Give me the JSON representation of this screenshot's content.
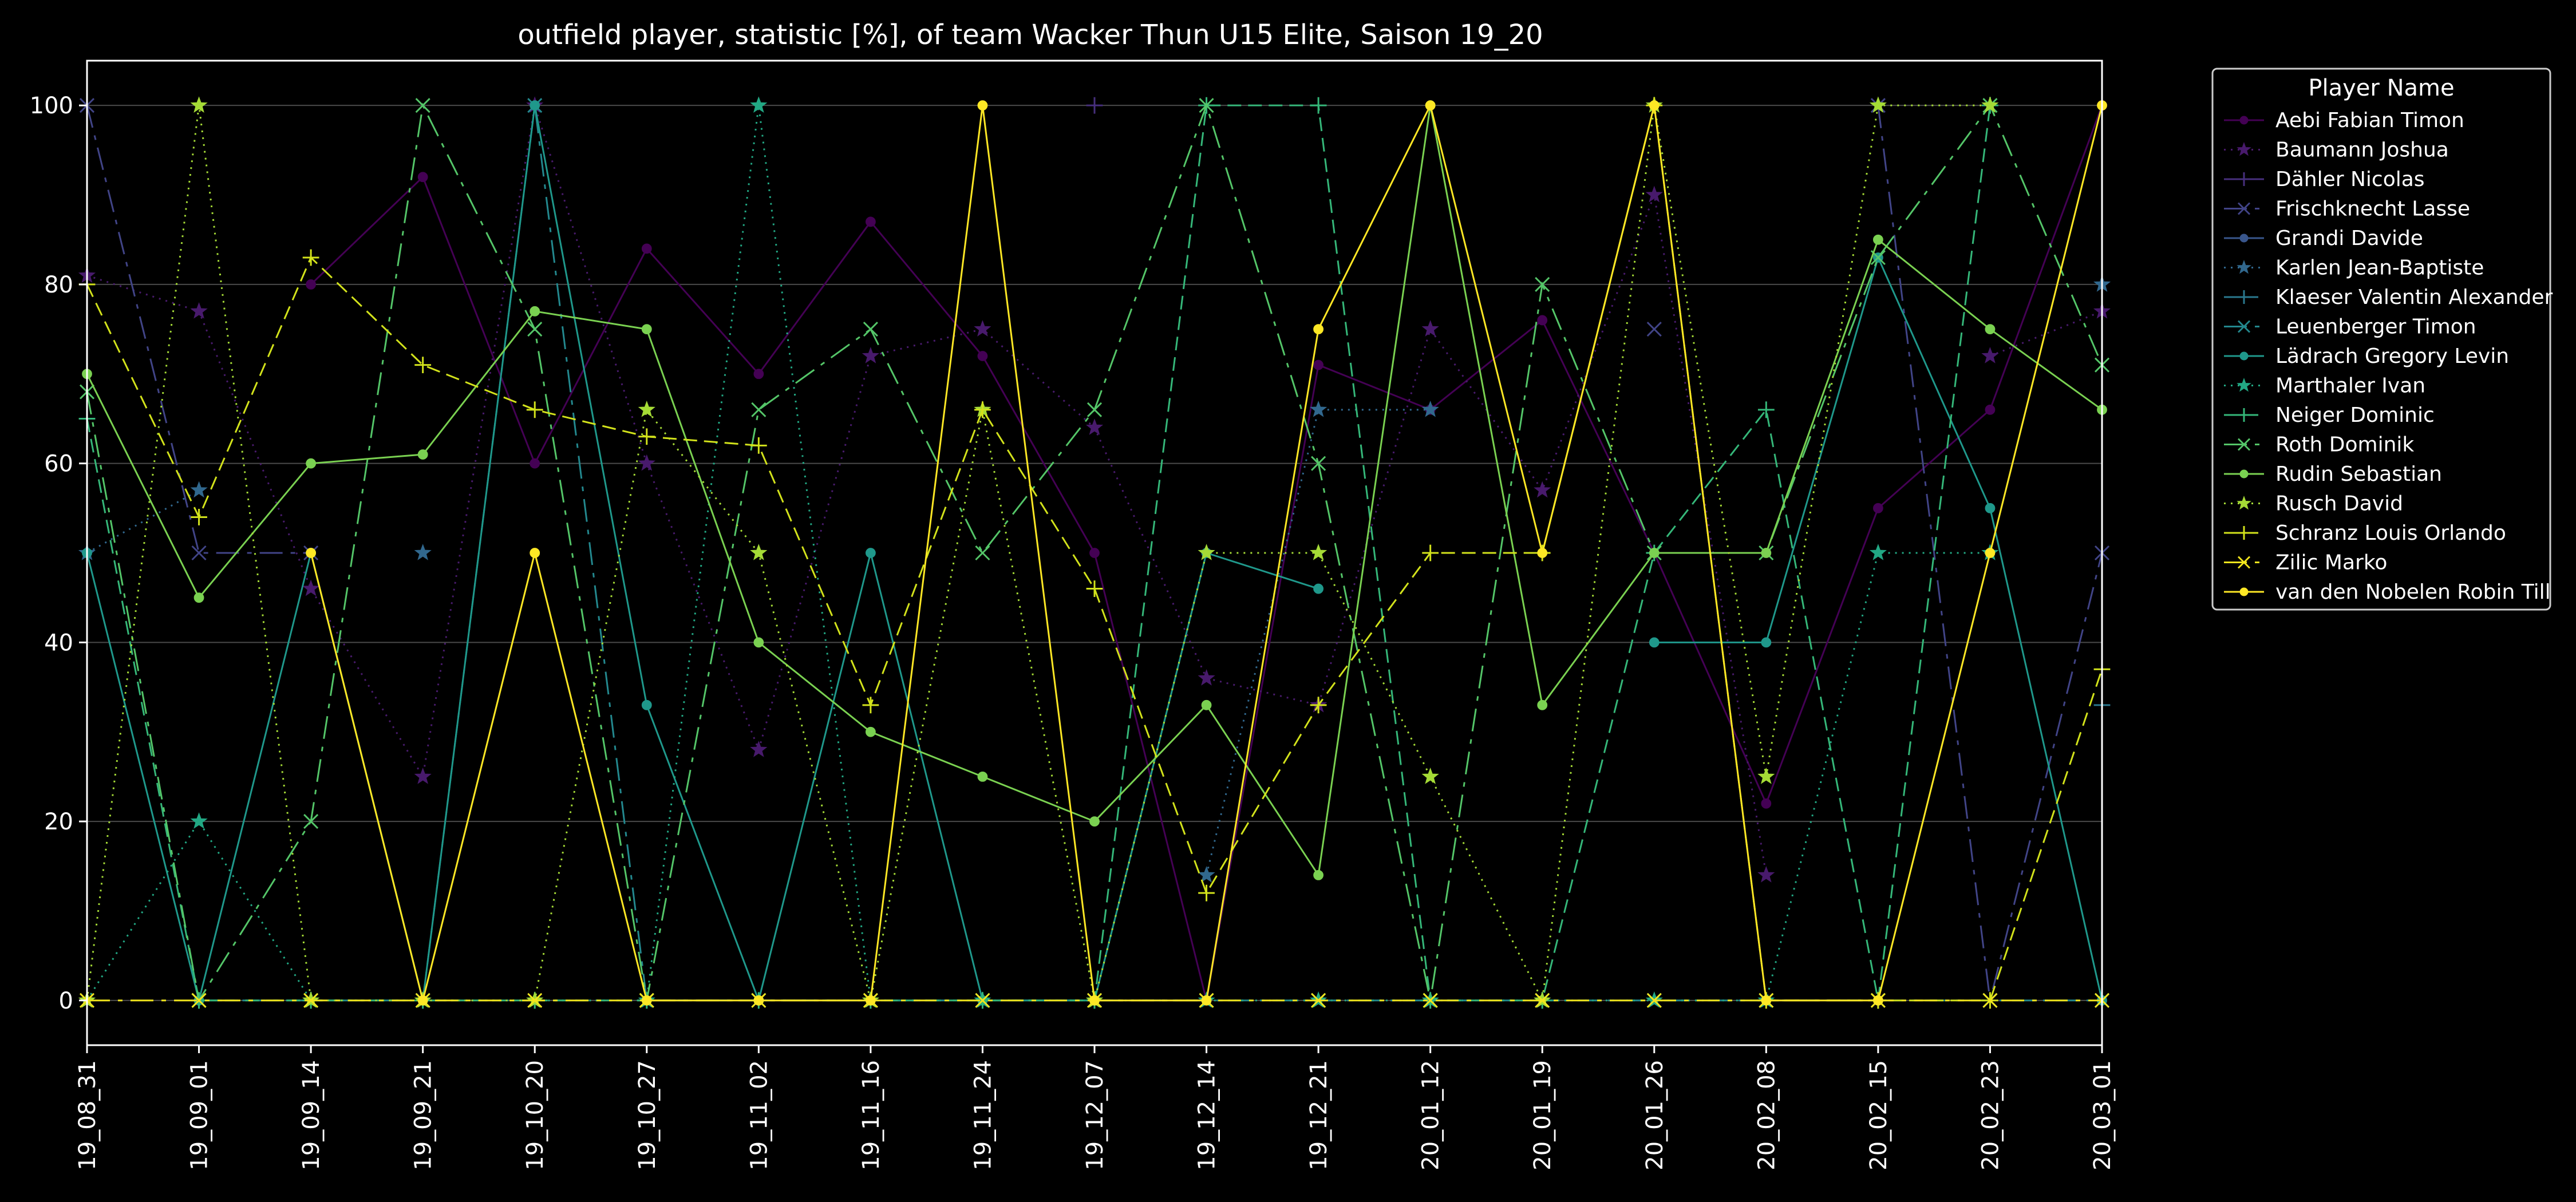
{
  "chart_data": {
    "type": "line",
    "title": "outfield player, statistic [%], of team Wacker Thun U15 Elite, Saison 19_20",
    "xlabel": "",
    "ylabel": "",
    "ylim": [
      -5,
      105
    ],
    "yticks": [
      0,
      20,
      40,
      60,
      80,
      100
    ],
    "grid": true,
    "legend_title": "Player Name",
    "legend_position": "outside-top-right",
    "categories": [
      "19_08_31",
      "19_09_01",
      "19_09_14",
      "19_09_21",
      "19_10_20",
      "19_10_27",
      "19_11_02",
      "19_11_16",
      "19_11_24",
      "19_12_07",
      "19_12_14",
      "19_12_21",
      "20_01_12",
      "20_01_19",
      "20_01_26",
      "20_02_08",
      "20_02_15",
      "20_02_23",
      "20_03_01"
    ],
    "series": [
      {
        "name": "Aebi Fabian Timon",
        "color": "#440154",
        "marker": "circle",
        "dash": "",
        "values": [
          null,
          null,
          80,
          92,
          60,
          84,
          70,
          87,
          72,
          50,
          0,
          71,
          66,
          76,
          50,
          22,
          55,
          66,
          100
        ]
      },
      {
        "name": "Baumann Joshua",
        "color": "#481a6c",
        "marker": "star",
        "dash": "3,9",
        "values": [
          81,
          77,
          46,
          25,
          100,
          60,
          28,
          72,
          75,
          64,
          36,
          33,
          75,
          57,
          90,
          14,
          null,
          72,
          77
        ]
      },
      {
        "name": "Dähler Nicolas",
        "color": "#472f7d",
        "marker": "plus",
        "dash": "",
        "values": [
          null,
          null,
          null,
          null,
          null,
          null,
          null,
          null,
          null,
          100,
          null,
          null,
          null,
          null,
          null,
          null,
          null,
          null,
          null
        ]
      },
      {
        "name": "Frischknecht Lasse",
        "color": "#414487",
        "marker": "x",
        "dash": "40,14,8,14",
        "values": [
          100,
          50,
          50,
          null,
          null,
          null,
          null,
          null,
          null,
          null,
          null,
          null,
          null,
          null,
          75,
          null,
          100,
          0,
          50
        ]
      },
      {
        "name": "Grandi Davide",
        "color": "#39568c",
        "marker": "circle",
        "dash": "",
        "values": [
          null,
          null,
          null,
          null,
          null,
          null,
          null,
          null,
          null,
          null,
          null,
          null,
          null,
          null,
          null,
          null,
          null,
          null,
          null
        ]
      },
      {
        "name": "Karlen Jean-Baptiste",
        "color": "#31688e",
        "marker": "star",
        "dash": "3,9",
        "values": [
          50,
          57,
          null,
          50,
          null,
          null,
          null,
          null,
          null,
          null,
          14,
          66,
          66,
          null,
          null,
          null,
          null,
          null,
          80
        ]
      },
      {
        "name": "Klaeser Valentin Alexander",
        "color": "#2a788e",
        "marker": "plus",
        "dash": "24,12",
        "values": [
          null,
          null,
          null,
          null,
          null,
          null,
          null,
          null,
          null,
          null,
          null,
          null,
          null,
          null,
          null,
          null,
          null,
          null,
          33
        ]
      },
      {
        "name": "Leuenberger Timon",
        "color": "#23888e",
        "marker": "x",
        "dash": "40,14,8,14",
        "values": [
          null,
          0,
          0,
          0,
          100,
          0,
          0,
          0,
          0,
          0,
          0,
          0,
          0,
          0,
          0,
          0,
          0,
          0,
          0
        ]
      },
      {
        "name": "Lädrach Gregory Levin",
        "color": "#1f988b",
        "marker": "circle",
        "dash": "",
        "values": [
          50,
          0,
          50,
          0,
          100,
          33,
          0,
          50,
          0,
          0,
          50,
          46,
          null,
          null,
          40,
          40,
          83,
          55,
          0
        ]
      },
      {
        "name": "Marthaler Ivan",
        "color": "#22a884",
        "marker": "star",
        "dash": "3,9",
        "values": [
          0,
          20,
          0,
          0,
          0,
          0,
          100,
          0,
          0,
          0,
          0,
          0,
          0,
          0,
          0,
          0,
          50,
          50,
          null
        ]
      },
      {
        "name": "Neiger Dominic",
        "color": "#35b779",
        "marker": "plus",
        "dash": "24,12",
        "values": [
          65,
          0,
          0,
          0,
          0,
          0,
          0,
          0,
          0,
          0,
          100,
          100,
          0,
          0,
          50,
          66,
          0,
          100,
          null
        ]
      },
      {
        "name": "Roth Dominik",
        "color": "#54c568",
        "marker": "x",
        "dash": "40,14,8,14",
        "values": [
          68,
          0,
          20,
          100,
          75,
          0,
          66,
          75,
          50,
          66,
          100,
          60,
          0,
          80,
          50,
          50,
          83,
          100,
          71
        ]
      },
      {
        "name": "Rudin Sebastian",
        "color": "#7ad151",
        "marker": "circle",
        "dash": "",
        "values": [
          70,
          45,
          60,
          61,
          77,
          75,
          40,
          30,
          25,
          20,
          33,
          14,
          100,
          33,
          50,
          50,
          85,
          75,
          66
        ]
      },
      {
        "name": "Rusch David",
        "color": "#a5db36",
        "marker": "star",
        "dash": "3,9",
        "values": [
          0,
          100,
          0,
          0,
          0,
          66,
          50,
          0,
          66,
          0,
          50,
          50,
          25,
          0,
          100,
          25,
          100,
          100,
          null
        ]
      },
      {
        "name": "Schranz Louis Orlando",
        "color": "#d2e21b",
        "marker": "plus",
        "dash": "24,12",
        "values": [
          80,
          54,
          83,
          71,
          66,
          63,
          62,
          33,
          66,
          46,
          12,
          33,
          50,
          50,
          100,
          0,
          0,
          0,
          37
        ]
      },
      {
        "name": "Zilic Marko",
        "color": "#f1e51d",
        "marker": "x",
        "dash": "40,14,8,14",
        "values": [
          0,
          0,
          0,
          0,
          0,
          0,
          0,
          0,
          0,
          0,
          0,
          0,
          0,
          0,
          0,
          0,
          0,
          0,
          0
        ]
      },
      {
        "name": "van den Nobelen Robin Till",
        "color": "#fde725",
        "marker": "circle",
        "dash": "",
        "values": [
          null,
          null,
          50,
          0,
          50,
          0,
          0,
          0,
          100,
          0,
          0,
          75,
          100,
          50,
          100,
          0,
          0,
          50,
          100
        ]
      }
    ]
  }
}
